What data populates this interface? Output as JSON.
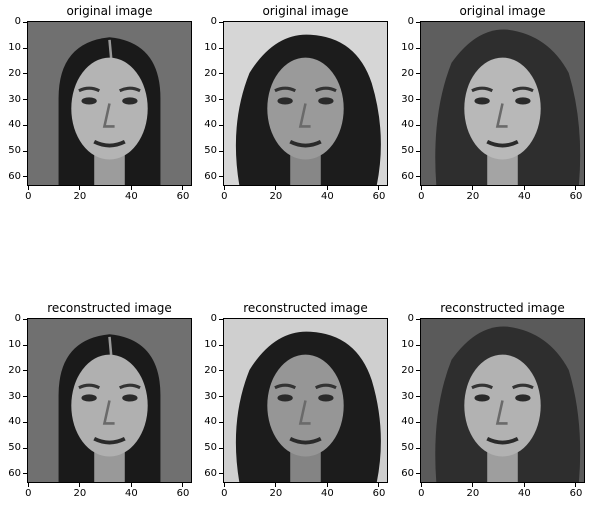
{
  "panels": [
    {
      "title": "original image",
      "face": {
        "bg": "#707070",
        "hair": "#1a1a1a",
        "skin": "#b4b4b4",
        "hair_style": "straight-center-part"
      }
    },
    {
      "title": "original image",
      "face": {
        "bg": "#d6d6d6",
        "hair": "#1c1c1c",
        "skin": "#9a9a9a",
        "hair_style": "curly"
      }
    },
    {
      "title": "original image",
      "face": {
        "bg": "#5e5e5e",
        "hair": "#2e2e2e",
        "skin": "#b8b8b8",
        "hair_style": "long-wavy"
      }
    },
    {
      "title": "reconstructed image",
      "face": {
        "bg": "#707070",
        "hair": "#1a1a1a",
        "skin": "#b0b0b0",
        "hair_style": "straight-center-part"
      }
    },
    {
      "title": "reconstructed image",
      "face": {
        "bg": "#cfcfcf",
        "hair": "#1c1c1c",
        "skin": "#969696",
        "hair_style": "curly"
      }
    },
    {
      "title": "reconstructed image",
      "face": {
        "bg": "#5a5a5a",
        "hair": "#2e2e2e",
        "skin": "#b2b2b2",
        "hair_style": "long-wavy"
      }
    }
  ],
  "axes": {
    "x_ticks": [
      0,
      20,
      40,
      60
    ],
    "y_ticks": [
      0,
      10,
      20,
      30,
      40,
      50,
      60
    ],
    "xlim": [
      -0.5,
      63.5
    ],
    "ylim": [
      63.5,
      -0.5
    ]
  },
  "colormap": "gray"
}
